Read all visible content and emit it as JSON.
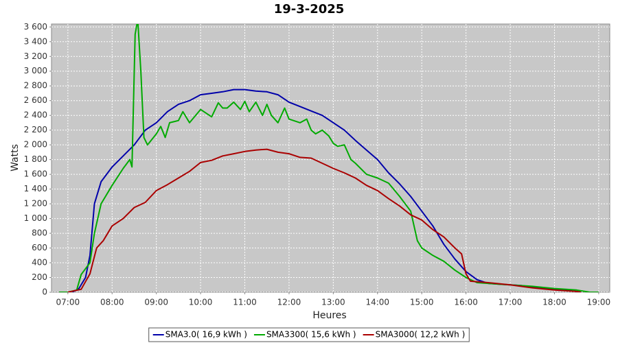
{
  "chart_data": {
    "type": "line",
    "title": "19-3-2025",
    "x_label": "Heures",
    "y_label": "Watts",
    "xlim": [
      6.63,
      19.25
    ],
    "ylim": [
      0,
      3640
    ],
    "grid": true,
    "xticks": [
      {
        "value": 7,
        "label": "07:00"
      },
      {
        "value": 8,
        "label": "08:00"
      },
      {
        "value": 9,
        "label": "09:00"
      },
      {
        "value": 10,
        "label": "10:00"
      },
      {
        "value": 11,
        "label": "11:00"
      },
      {
        "value": 12,
        "label": "12:00"
      },
      {
        "value": 13,
        "label": "13:00"
      },
      {
        "value": 14,
        "label": "14:00"
      },
      {
        "value": 15,
        "label": "15:00"
      },
      {
        "value": 16,
        "label": "16:00"
      },
      {
        "value": 17,
        "label": "17:00"
      },
      {
        "value": 18,
        "label": "18:00"
      },
      {
        "value": 19,
        "label": "19:00"
      }
    ],
    "yticks": [
      0,
      200,
      400,
      600,
      800,
      {
        "value": 1000,
        "label": "1 000"
      },
      {
        "value": 1200,
        "label": "1 200"
      },
      {
        "value": 1400,
        "label": "1 400"
      },
      {
        "value": 1600,
        "label": "1 600"
      },
      {
        "value": 1800,
        "label": "1 800"
      },
      {
        "value": 2000,
        "label": "2 000"
      },
      {
        "value": 2200,
        "label": "2 200"
      },
      {
        "value": 2400,
        "label": "2 400"
      },
      {
        "value": 2600,
        "label": "2 600"
      },
      {
        "value": 2800,
        "label": "2 800"
      },
      {
        "value": 3000,
        "label": "3 000"
      },
      {
        "value": 3200,
        "label": "3 200"
      },
      {
        "value": 3400,
        "label": "3 400"
      },
      {
        "value": 3600,
        "label": "3 600"
      }
    ],
    "series": [
      {
        "name": "SMA3.0( 16,9 kWh )",
        "color": "#0000aa",
        "x": [
          7.1,
          7.25,
          7.4,
          7.5,
          7.6,
          7.75,
          8.0,
          8.25,
          8.5,
          8.75,
          9.0,
          9.25,
          9.5,
          9.75,
          10.0,
          10.25,
          10.5,
          10.75,
          11.0,
          11.25,
          11.5,
          11.75,
          12.0,
          12.25,
          12.5,
          12.75,
          13.0,
          13.25,
          13.5,
          13.75,
          14.0,
          14.25,
          14.5,
          14.75,
          15.0,
          15.25,
          15.5,
          15.75,
          16.0,
          16.25,
          16.5,
          16.75,
          17.0,
          17.25,
          17.5,
          17.75,
          18.0,
          18.25,
          18.5,
          18.6
        ],
        "values": [
          0,
          50,
          200,
          500,
          1200,
          1500,
          1700,
          1850,
          2000,
          2200,
          2300,
          2450,
          2550,
          2600,
          2680,
          2700,
          2720,
          2750,
          2750,
          2730,
          2720,
          2680,
          2580,
          2520,
          2460,
          2400,
          2300,
          2200,
          2060,
          1930,
          1800,
          1620,
          1470,
          1300,
          1100,
          900,
          650,
          450,
          280,
          170,
          120,
          110,
          100,
          90,
          70,
          50,
          40,
          30,
          10,
          0
        ]
      },
      {
        "name": "SMA3300( 15,6 kWh )",
        "color": "#00aa00",
        "x": [
          6.8,
          7.0,
          7.2,
          7.3,
          7.5,
          7.6,
          7.75,
          8.0,
          8.25,
          8.4,
          8.45,
          8.52,
          8.58,
          8.65,
          8.72,
          8.8,
          9.0,
          9.1,
          9.2,
          9.3,
          9.5,
          9.6,
          9.75,
          10.0,
          10.25,
          10.4,
          10.5,
          10.6,
          10.75,
          10.9,
          11.0,
          11.1,
          11.25,
          11.4,
          11.5,
          11.6,
          11.75,
          11.9,
          12.0,
          12.25,
          12.4,
          12.5,
          12.6,
          12.75,
          12.9,
          13.0,
          13.1,
          13.25,
          13.4,
          13.5,
          13.75,
          14.0,
          14.25,
          14.5,
          14.75,
          14.9,
          15.0,
          15.25,
          15.5,
          15.75,
          16.0,
          16.25,
          16.5,
          16.75,
          17.0,
          17.5,
          18.0,
          18.5,
          18.8,
          19.0
        ],
        "values": [
          0,
          0,
          30,
          240,
          400,
          800,
          1200,
          1450,
          1680,
          1800,
          1700,
          3500,
          3700,
          3000,
          2100,
          2000,
          2150,
          2250,
          2100,
          2300,
          2330,
          2450,
          2300,
          2480,
          2380,
          2570,
          2500,
          2500,
          2580,
          2480,
          2590,
          2450,
          2580,
          2400,
          2550,
          2400,
          2300,
          2500,
          2350,
          2300,
          2350,
          2200,
          2150,
          2200,
          2120,
          2020,
          1980,
          2000,
          1800,
          1750,
          1600,
          1550,
          1480,
          1300,
          1100,
          700,
          600,
          500,
          420,
          300,
          200,
          130,
          120,
          110,
          100,
          80,
          50,
          30,
          0,
          0
        ]
      },
      {
        "name": "SMA3000( 12,2 kWh )",
        "color": "#aa0000",
        "x": [
          7.0,
          7.3,
          7.5,
          7.65,
          7.8,
          8.0,
          8.25,
          8.5,
          8.75,
          9.0,
          9.25,
          9.5,
          9.75,
          10.0,
          10.25,
          10.5,
          10.75,
          11.0,
          11.25,
          11.5,
          11.75,
          12.0,
          12.25,
          12.5,
          12.75,
          13.0,
          13.25,
          13.5,
          13.75,
          14.0,
          14.25,
          14.5,
          14.75,
          15.0,
          15.25,
          15.5,
          15.75,
          15.9,
          16.0,
          16.1,
          16.5,
          17.0,
          17.5,
          18.0,
          18.5,
          18.6
        ],
        "values": [
          0,
          40,
          250,
          600,
          700,
          900,
          1000,
          1150,
          1220,
          1380,
          1460,
          1550,
          1640,
          1760,
          1790,
          1850,
          1880,
          1910,
          1930,
          1940,
          1900,
          1880,
          1830,
          1820,
          1750,
          1680,
          1620,
          1550,
          1450,
          1380,
          1270,
          1170,
          1050,
          980,
          850,
          750,
          600,
          520,
          250,
          150,
          130,
          100,
          60,
          30,
          10,
          0
        ]
      }
    ]
  }
}
